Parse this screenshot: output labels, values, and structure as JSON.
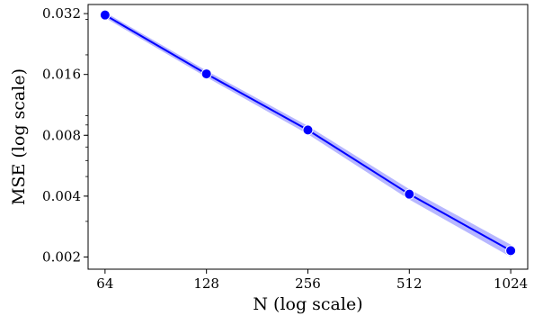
{
  "chart_data": {
    "type": "line",
    "title": "",
    "xlabel": "N (log scale)",
    "ylabel": "MSE (log scale)",
    "x_scale": "log2",
    "y_scale": "log2",
    "xlim": [
      57,
      1150
    ],
    "ylim": [
      0.00174,
      0.0355
    ],
    "x_ticks": [
      64,
      128,
      256,
      512,
      1024
    ],
    "x_tick_labels": [
      "64",
      "128",
      "256",
      "512",
      "1024"
    ],
    "y_ticks": [
      0.002,
      0.004,
      0.008,
      0.016,
      0.032
    ],
    "y_tick_labels": [
      "0.002",
      "0.004",
      "0.008",
      "0.016",
      "0.032"
    ],
    "grid": false,
    "legend": "none",
    "series": [
      {
        "x": [
          64,
          128,
          256,
          512,
          1024
        ],
        "y": [
          0.0315,
          0.0161,
          0.0085,
          0.00409,
          0.00215
        ],
        "y_lower": [
          0.0305,
          0.0155,
          0.0081,
          0.00385,
          0.002
        ],
        "y_upper": [
          0.0325,
          0.0167,
          0.0089,
          0.00433,
          0.0023
        ],
        "color": "#0000ff",
        "band_color": "#9f9fff"
      }
    ]
  }
}
